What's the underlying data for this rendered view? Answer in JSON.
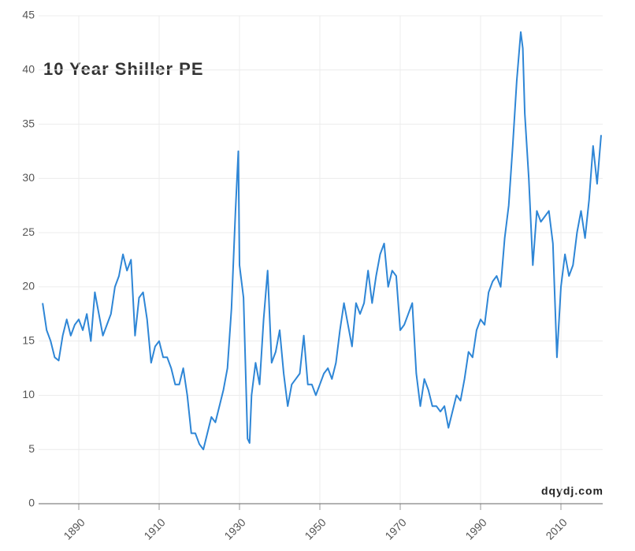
{
  "chart_data": {
    "type": "line",
    "title": "10 Year Shiller PE",
    "watermark": "dqydj.com",
    "x": [
      1881,
      1882,
      1883,
      1884,
      1885,
      1886,
      1887,
      1888,
      1889,
      1890,
      1891,
      1892,
      1893,
      1894,
      1895,
      1896,
      1897,
      1898,
      1899,
      1900,
      1901,
      1902,
      1903,
      1904,
      1905,
      1906,
      1907,
      1908,
      1909,
      1910,
      1911,
      1912,
      1913,
      1914,
      1915,
      1916,
      1917,
      1918,
      1919,
      1920,
      1921,
      1922,
      1923,
      1924,
      1925,
      1926,
      1927,
      1928,
      1929,
      1929.7,
      1930,
      1931,
      1932,
      1932.5,
      1933,
      1934,
      1935,
      1936,
      1937,
      1938,
      1939,
      1940,
      1941,
      1942,
      1943,
      1944,
      1945,
      1946,
      1947,
      1948,
      1949,
      1950,
      1951,
      1952,
      1953,
      1954,
      1955,
      1956,
      1957,
      1958,
      1959,
      1960,
      1961,
      1962,
      1963,
      1964,
      1965,
      1966,
      1967,
      1968,
      1969,
      1970,
      1971,
      1972,
      1973,
      1974,
      1975,
      1976,
      1977,
      1978,
      1979,
      1980,
      1981,
      1982,
      1983,
      1984,
      1985,
      1986,
      1987,
      1988,
      1989,
      1990,
      1991,
      1992,
      1993,
      1994,
      1995,
      1996,
      1997,
      1998,
      1999,
      2000,
      2000.5,
      2001,
      2002,
      2003,
      2004,
      2005,
      2006,
      2007,
      2008,
      2009,
      2010,
      2011,
      2012,
      2013,
      2014,
      2015,
      2016,
      2017,
      2018,
      2019,
      2020
    ],
    "series": [
      {
        "name": "10 Year Shiller PE",
        "color": "#2e86d6",
        "values": [
          18.5,
          16,
          15,
          13.5,
          13.2,
          15.5,
          17,
          15.5,
          16.5,
          17,
          16,
          17.5,
          15,
          19.5,
          17.5,
          15.5,
          16.5,
          17.5,
          20,
          21,
          23,
          21.5,
          22.5,
          15.5,
          19,
          19.5,
          17,
          13,
          14.5,
          15,
          13.5,
          13.5,
          12.5,
          11,
          11,
          12.5,
          10,
          6.5,
          6.5,
          5.5,
          5,
          6.5,
          8,
          7.5,
          9,
          10.5,
          12.5,
          18,
          27,
          32.5,
          22,
          19,
          6,
          5.6,
          10,
          13,
          11,
          17,
          21.5,
          13,
          14,
          16,
          12,
          9,
          11,
          11.5,
          12,
          15.5,
          11,
          11,
          10,
          11,
          12,
          12.5,
          11.5,
          13,
          16,
          18.5,
          16.5,
          14.5,
          18.5,
          17.5,
          18.5,
          21.5,
          18.5,
          21,
          23,
          24,
          20,
          21.5,
          21,
          16,
          16.5,
          17.5,
          18.5,
          12,
          9,
          11.5,
          10.5,
          9,
          9,
          8.5,
          9,
          7,
          8.5,
          10,
          9.5,
          11.5,
          14,
          13.5,
          16,
          17,
          16.5,
          19.5,
          20.5,
          21,
          20,
          24.5,
          27.5,
          33,
          39,
          43.5,
          42,
          36,
          30,
          22,
          27,
          26,
          26.5,
          27,
          24,
          13.5,
          20,
          23,
          21,
          22,
          25,
          27,
          24.5,
          28,
          33,
          29.5,
          34
        ]
      }
    ],
    "xlim": [
      1880,
      2020
    ],
    "xticks": [
      1890,
      1910,
      1930,
      1950,
      1970,
      1990,
      2010
    ],
    "ylim": [
      0,
      45
    ],
    "yticks": [
      0,
      5,
      10,
      15,
      20,
      25,
      30,
      35,
      40,
      45
    ],
    "grid": true
  }
}
